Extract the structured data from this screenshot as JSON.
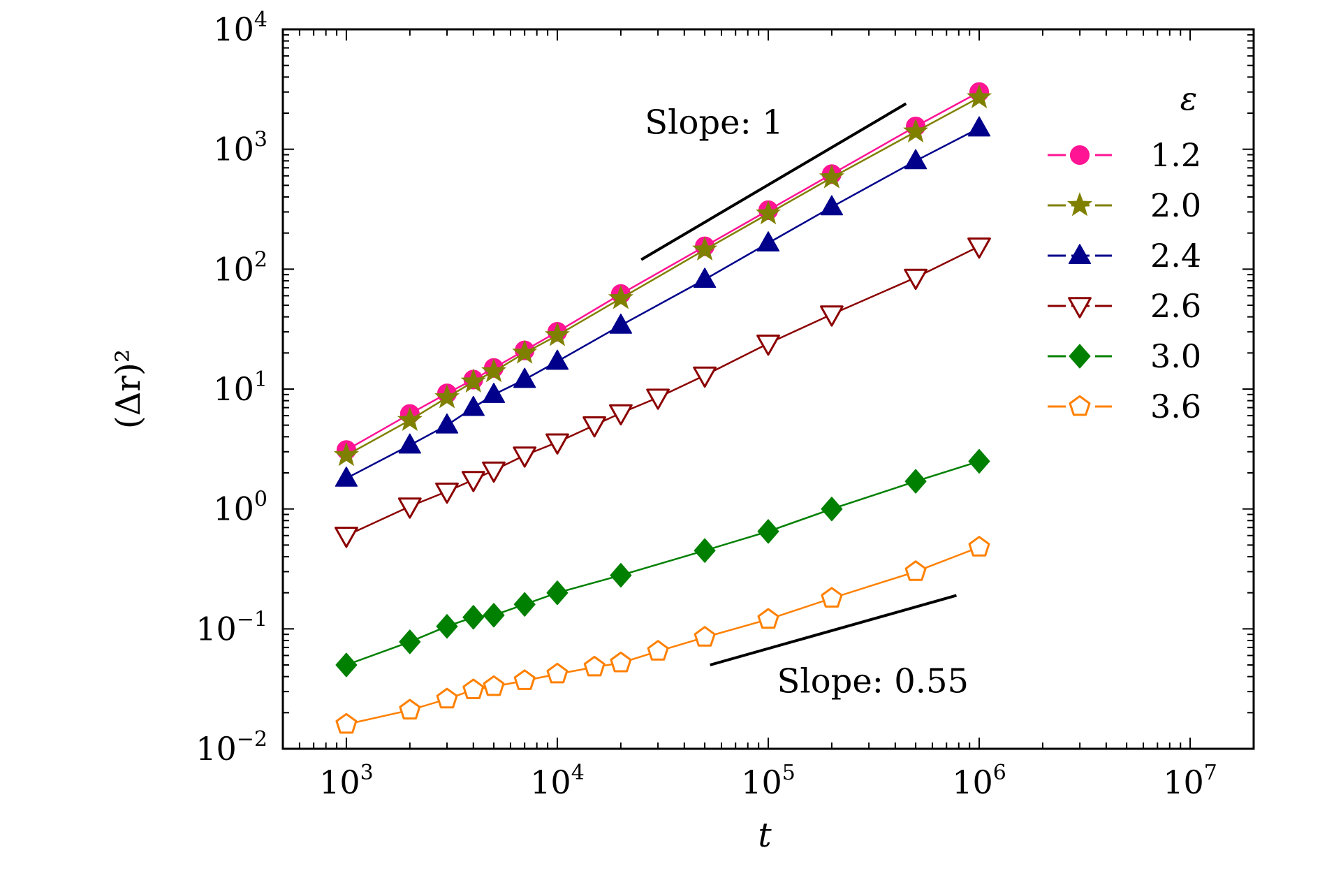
{
  "chart_data": {
    "type": "scatter",
    "xscale": "log",
    "yscale": "log",
    "xlim": [
      500,
      20000000
    ],
    "ylim": [
      0.01,
      10000
    ],
    "xlabel": "t",
    "ylabel": "(Δr)²",
    "x_ticks": [
      {
        "value": 1000,
        "base": "10",
        "exp": "3"
      },
      {
        "value": 10000,
        "base": "10",
        "exp": "4"
      },
      {
        "value": 100000,
        "base": "10",
        "exp": "5"
      },
      {
        "value": 1000000,
        "base": "10",
        "exp": "6"
      },
      {
        "value": 10000000,
        "base": "10",
        "exp": "7"
      }
    ],
    "y_ticks": [
      {
        "value": 0.01,
        "base": "10",
        "exp": "−2"
      },
      {
        "value": 0.1,
        "base": "10",
        "exp": "−1"
      },
      {
        "value": 1,
        "base": "10",
        "exp": "0"
      },
      {
        "value": 10,
        "base": "10",
        "exp": "1"
      },
      {
        "value": 100,
        "base": "10",
        "exp": "2"
      },
      {
        "value": 1000,
        "base": "10",
        "exp": "3"
      },
      {
        "value": 10000,
        "base": "10",
        "exp": "4"
      }
    ],
    "legend": {
      "title": "ε",
      "position": "right"
    },
    "series": [
      {
        "name": "1.2",
        "color": "#ff1493",
        "marker": "circle",
        "filled": true,
        "points": [
          [
            1000,
            3.1
          ],
          [
            2000,
            6.2
          ],
          [
            3000,
            9.2
          ],
          [
            4000,
            12
          ],
          [
            5000,
            15
          ],
          [
            7000,
            21
          ],
          [
            10000,
            30
          ],
          [
            20000,
            62
          ],
          [
            50000,
            155
          ],
          [
            100000,
            310
          ],
          [
            200000,
            620
          ],
          [
            500000,
            1550
          ],
          [
            1000000,
            3000
          ]
        ]
      },
      {
        "name": "2.0",
        "color": "#808000",
        "marker": "star",
        "filled": true,
        "points": [
          [
            1000,
            2.8
          ],
          [
            2000,
            5.5
          ],
          [
            3000,
            8.5
          ],
          [
            4000,
            11.5
          ],
          [
            5000,
            14
          ],
          [
            7000,
            20
          ],
          [
            10000,
            28
          ],
          [
            20000,
            57
          ],
          [
            50000,
            145
          ],
          [
            100000,
            290
          ],
          [
            200000,
            580
          ],
          [
            500000,
            1400
          ],
          [
            1000000,
            2700
          ]
        ]
      },
      {
        "name": "2.4",
        "color": "#00008b",
        "marker": "triangle-up",
        "filled": true,
        "points": [
          [
            1000,
            1.8
          ],
          [
            2000,
            3.4
          ],
          [
            3000,
            5
          ],
          [
            4000,
            7
          ],
          [
            5000,
            9
          ],
          [
            7000,
            12
          ],
          [
            10000,
            17
          ],
          [
            20000,
            34
          ],
          [
            50000,
            82
          ],
          [
            100000,
            165
          ],
          [
            200000,
            330
          ],
          [
            500000,
            800
          ],
          [
            1000000,
            1500
          ]
        ]
      },
      {
        "name": "2.6",
        "color": "#8b0000",
        "marker": "triangle-down",
        "filled": false,
        "points": [
          [
            1000,
            0.6
          ],
          [
            2000,
            1.05
          ],
          [
            3000,
            1.4
          ],
          [
            4000,
            1.75
          ],
          [
            5000,
            2.1
          ],
          [
            7000,
            2.8
          ],
          [
            10000,
            3.6
          ],
          [
            15000,
            5
          ],
          [
            20000,
            6.3
          ],
          [
            30000,
            8.5
          ],
          [
            50000,
            13
          ],
          [
            100000,
            24
          ],
          [
            200000,
            42
          ],
          [
            500000,
            85
          ],
          [
            1000000,
            155
          ]
        ]
      },
      {
        "name": "3.0",
        "color": "#008000",
        "marker": "diamond",
        "filled": true,
        "points": [
          [
            1000,
            0.05
          ],
          [
            2000,
            0.078
          ],
          [
            3000,
            0.105
          ],
          [
            4000,
            0.125
          ],
          [
            5000,
            0.13
          ],
          [
            7000,
            0.16
          ],
          [
            10000,
            0.2
          ],
          [
            20000,
            0.28
          ],
          [
            50000,
            0.45
          ],
          [
            100000,
            0.65
          ],
          [
            200000,
            1.0
          ],
          [
            500000,
            1.7
          ],
          [
            1000000,
            2.5
          ]
        ]
      },
      {
        "name": "3.6",
        "color": "#ff8000",
        "marker": "pentagon",
        "filled": false,
        "points": [
          [
            1000,
            0.016
          ],
          [
            2000,
            0.021
          ],
          [
            3000,
            0.026
          ],
          [
            4000,
            0.031
          ],
          [
            5000,
            0.033
          ],
          [
            7000,
            0.037
          ],
          [
            10000,
            0.042
          ],
          [
            15000,
            0.048
          ],
          [
            20000,
            0.052
          ],
          [
            30000,
            0.065
          ],
          [
            50000,
            0.085
          ],
          [
            100000,
            0.12
          ],
          [
            200000,
            0.18
          ],
          [
            500000,
            0.3
          ],
          [
            1000000,
            0.48
          ]
        ]
      }
    ],
    "annotations": [
      {
        "text": "Slope: 1",
        "line": {
          "x": [
            25000,
            450000
          ],
          "y": [
            120,
            2400
          ]
        },
        "label_at": [
          26000,
          1350
        ]
      },
      {
        "text": "Slope: 0.55",
        "line": {
          "x": [
            53000,
            780000
          ],
          "y": [
            0.05,
            0.19
          ]
        },
        "label_at": [
          110000,
          0.0295
        ]
      }
    ]
  }
}
